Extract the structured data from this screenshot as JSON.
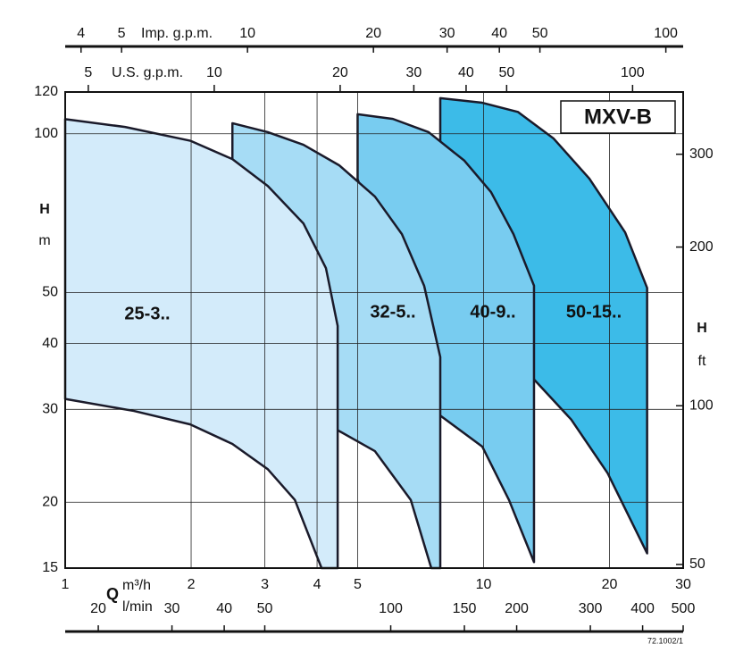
{
  "chart_data": {
    "type": "area",
    "title": "MXV-B",
    "code": "72.1002/1",
    "x_label": "Q",
    "x_unit": "m³/h",
    "xlim": [
      1,
      30
    ],
    "xticks": [
      1,
      2,
      3,
      4,
      5,
      10,
      20,
      30
    ],
    "log_x": true,
    "x2_unit": "l/min",
    "x2lim": [
      16.67,
      500
    ],
    "x2ticks": [
      20,
      30,
      40,
      50,
      100,
      150,
      200,
      300,
      400,
      500
    ],
    "x3_unit": "U.S. g.p.m.",
    "x3lim": [
      4.403,
      132.1
    ],
    "x3ticks": [
      5,
      10,
      20,
      30,
      40,
      50,
      100
    ],
    "x4_unit": "Imp. g.p.m.",
    "x4lim": [
      3.666,
      110
    ],
    "x4ticks": [
      4,
      5,
      10,
      20,
      30,
      40,
      50,
      100
    ],
    "y_label": "H",
    "y_unit": "m",
    "ylim": [
      15,
      120
    ],
    "yticks": [
      15,
      20,
      30,
      40,
      50,
      100,
      120
    ],
    "log_y": true,
    "y2_label": "H",
    "y2_unit": "ft",
    "y2lim": [
      49.21,
      393.7
    ],
    "y2ticks": [
      50,
      100,
      200,
      300
    ],
    "grid": true,
    "series": [
      {
        "name": "25-3..",
        "color": "#d3ebfa",
        "x": [
          1,
          1.39,
          1.99,
          2.51,
          3.05,
          3.71,
          4.2,
          4.48
        ],
        "values": [
          106.6,
          103,
          97,
          89.5,
          79.6,
          67.6,
          55.6,
          43.2
        ],
        "lower_x": [
          1,
          1.46,
          1.99,
          2.51,
          3.05,
          3.54,
          4.1,
          4.48
        ],
        "lower_values": [
          31.4,
          29.8,
          28.1,
          25.8,
          23.1,
          20.2,
          15,
          15
        ]
      },
      {
        "name": "32-5..",
        "color": "#a6dcf5",
        "x": [
          2.51,
          3.05,
          3.71,
          4.52,
          5.5,
          6.38,
          7.21,
          7.88
        ],
        "values": [
          104.7,
          100.7,
          95.3,
          87.1,
          76,
          64.5,
          51.5,
          37.7
        ],
        "lower_x": [
          2.51,
          4.48,
          5.5,
          6.7,
          7.5,
          7.88
        ],
        "lower_values": [
          89.5,
          27.4,
          25,
          20.2,
          15,
          15
        ]
      },
      {
        "name": "40-9..",
        "color": "#78ccf0",
        "x": [
          5,
          6.07,
          7.39,
          9,
          10.42,
          11.79,
          13.2
        ],
        "values": [
          108.9,
          106.7,
          100.7,
          88.9,
          77.5,
          64.5,
          51.5
        ],
        "lower_x": [
          5,
          7.88,
          9.93,
          11.5,
          13.2
        ],
        "lower_values": [
          82,
          29.2,
          25.5,
          20.2,
          15.4
        ]
      },
      {
        "name": "50-15..",
        "color": "#3cbbe8",
        "x": [
          7.88,
          9.93,
          12.08,
          14.71,
          17.9,
          21.8,
          24.6
        ],
        "values": [
          116.8,
          114.5,
          110,
          97.9,
          82.2,
          65,
          51
        ],
        "lower_x": [
          7.88,
          13.2,
          16.2,
          19.8,
          24.6
        ],
        "lower_values": [
          97,
          34.2,
          28.7,
          22.7,
          16
        ]
      }
    ]
  }
}
